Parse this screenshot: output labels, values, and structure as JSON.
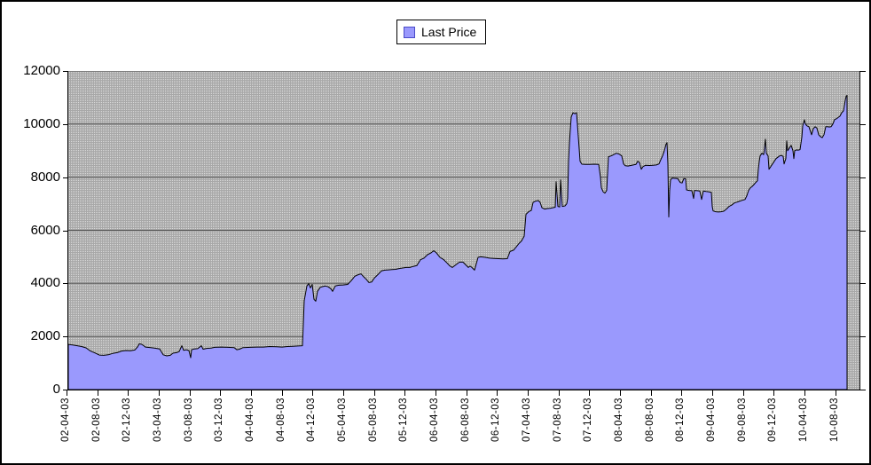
{
  "legend": {
    "label": "Last Price"
  },
  "colors": {
    "series_fill": "#9a99fd",
    "series_border": "#000000",
    "plot_bg_light": "#d8d8d8",
    "plot_bg_dot": "#a8a8a8",
    "gridline": "#555555",
    "legend_swatch_border": "#4a4ac8",
    "axis": "#000000"
  },
  "chart_data": {
    "type": "area",
    "title": "",
    "xlabel": "",
    "ylabel": "",
    "ylim": [
      0,
      12000
    ],
    "y_ticks": [
      0,
      2000,
      4000,
      6000,
      8000,
      10000,
      12000
    ],
    "grid": true,
    "legend_position": "top-center",
    "plot_background": "gray-dither",
    "x_tick_labels": [
      "02-04-03",
      "02-08-03",
      "02-12-03",
      "03-04-03",
      "03-08-03",
      "03-12-03",
      "04-04-03",
      "04-08-03",
      "04-12-03",
      "05-04-03",
      "05-08-03",
      "05-12-03",
      "06-04-03",
      "06-08-03",
      "06-12-03",
      "07-04-03",
      "07-08-03",
      "07-12-03",
      "08-04-03",
      "08-08-03",
      "08-12-03",
      "09-04-03",
      "09-08-03",
      "09-12-03",
      "10-04-03",
      "10-08-03"
    ],
    "x_unit": "weeks since 02-04-03",
    "weeks_per_x_tick": 17.33,
    "series": [
      {
        "name": "Last Price",
        "points": [
          [
            1,
            1700
          ],
          [
            3.5,
            1680
          ],
          [
            6,
            1650
          ],
          [
            8.5,
            1620
          ],
          [
            11,
            1570
          ],
          [
            13.5,
            1450
          ],
          [
            16,
            1380
          ],
          [
            18.5,
            1300
          ],
          [
            21,
            1290
          ],
          [
            23.5,
            1310
          ],
          [
            26,
            1360
          ],
          [
            28.5,
            1390
          ],
          [
            31,
            1450
          ],
          [
            33.5,
            1470
          ],
          [
            36,
            1460
          ],
          [
            38.5,
            1490
          ],
          [
            40,
            1600
          ],
          [
            41,
            1720
          ],
          [
            42.5,
            1700
          ],
          [
            44.5,
            1600
          ],
          [
            47.5,
            1580
          ],
          [
            49.5,
            1560
          ],
          [
            52.5,
            1530
          ],
          [
            54.5,
            1310
          ],
          [
            56.5,
            1270
          ],
          [
            58.5,
            1290
          ],
          [
            60,
            1370
          ],
          [
            62,
            1390
          ],
          [
            63.5,
            1430
          ],
          [
            65,
            1650
          ],
          [
            66,
            1480
          ],
          [
            67.5,
            1500
          ],
          [
            69,
            1470
          ],
          [
            70,
            1200
          ],
          [
            70.5,
            1500
          ],
          [
            72,
            1530
          ],
          [
            74,
            1540
          ],
          [
            76,
            1650
          ],
          [
            77,
            1520
          ],
          [
            79,
            1550
          ],
          [
            81.5,
            1560
          ],
          [
            83.5,
            1590
          ],
          [
            87.5,
            1600
          ],
          [
            91,
            1590
          ],
          [
            94.5,
            1580
          ],
          [
            96,
            1500
          ],
          [
            97.5,
            1520
          ],
          [
            99.5,
            1580
          ],
          [
            103.5,
            1590
          ],
          [
            107.5,
            1600
          ],
          [
            111,
            1600
          ],
          [
            114.5,
            1620
          ],
          [
            118.5,
            1610
          ],
          [
            121.5,
            1600
          ],
          [
            124.5,
            1620
          ],
          [
            127.5,
            1630
          ],
          [
            130.5,
            1640
          ],
          [
            133,
            1650
          ],
          [
            134,
            3350
          ],
          [
            135.5,
            3900
          ],
          [
            136.5,
            3990
          ],
          [
            137.5,
            3830
          ],
          [
            138.5,
            3960
          ],
          [
            139.5,
            3400
          ],
          [
            140.5,
            3330
          ],
          [
            141.5,
            3700
          ],
          [
            143,
            3850
          ],
          [
            144.5,
            3880
          ],
          [
            146,
            3900
          ],
          [
            147.5,
            3870
          ],
          [
            149,
            3800
          ],
          [
            150,
            3700
          ],
          [
            151.5,
            3900
          ],
          [
            153.5,
            3930
          ],
          [
            156,
            3940
          ],
          [
            158.5,
            3960
          ],
          [
            160.5,
            4100
          ],
          [
            162.5,
            4270
          ],
          [
            164.5,
            4330
          ],
          [
            166,
            4360
          ],
          [
            167.5,
            4250
          ],
          [
            169,
            4150
          ],
          [
            170.5,
            4030
          ],
          [
            172,
            4050
          ],
          [
            173.5,
            4200
          ],
          [
            175.5,
            4330
          ],
          [
            177.5,
            4470
          ],
          [
            179.5,
            4500
          ],
          [
            181.5,
            4510
          ],
          [
            183.5,
            4520
          ],
          [
            185.5,
            4530
          ],
          [
            187.5,
            4560
          ],
          [
            189.5,
            4580
          ],
          [
            191.5,
            4600
          ],
          [
            193.5,
            4600
          ],
          [
            195.5,
            4640
          ],
          [
            197.5,
            4670
          ],
          [
            199.5,
            4890
          ],
          [
            201.5,
            4950
          ],
          [
            203.5,
            5080
          ],
          [
            205.5,
            5150
          ],
          [
            207,
            5230
          ],
          [
            208.5,
            5150
          ],
          [
            210.5,
            4980
          ],
          [
            212.5,
            4900
          ],
          [
            214.5,
            4770
          ],
          [
            216,
            4660
          ],
          [
            217.5,
            4600
          ],
          [
            219.5,
            4700
          ],
          [
            221.5,
            4800
          ],
          [
            223.5,
            4800
          ],
          [
            225,
            4700
          ],
          [
            226.5,
            4600
          ],
          [
            227.5,
            4650
          ],
          [
            228.5,
            4600
          ],
          [
            230,
            4500
          ],
          [
            232,
            4980
          ],
          [
            233.5,
            5000
          ],
          [
            236,
            4980
          ],
          [
            238.5,
            4950
          ],
          [
            241,
            4940
          ],
          [
            243.5,
            4930
          ],
          [
            246,
            4920
          ],
          [
            248.5,
            4930
          ],
          [
            250,
            5200
          ],
          [
            252,
            5250
          ],
          [
            253.5,
            5370
          ],
          [
            255,
            5500
          ],
          [
            256.5,
            5600
          ],
          [
            258,
            5780
          ],
          [
            259,
            6600
          ],
          [
            260.5,
            6700
          ],
          [
            262,
            6750
          ],
          [
            263,
            7050
          ],
          [
            264.5,
            7100
          ],
          [
            266,
            7120
          ],
          [
            267,
            7050
          ],
          [
            268,
            6850
          ],
          [
            269.5,
            6800
          ],
          [
            271,
            6820
          ],
          [
            272.5,
            6830
          ],
          [
            274,
            6850
          ],
          [
            275.5,
            6870
          ],
          [
            276,
            7830
          ],
          [
            277,
            6900
          ],
          [
            278,
            6880
          ],
          [
            278.5,
            7900
          ],
          [
            279.5,
            6900
          ],
          [
            281,
            6920
          ],
          [
            282,
            7000
          ],
          [
            282.5,
            7200
          ],
          [
            283,
            8600
          ],
          [
            283.5,
            9300
          ],
          [
            284.5,
            10270
          ],
          [
            285.5,
            10430
          ],
          [
            286.5,
            10390
          ],
          [
            287.5,
            10430
          ],
          [
            288,
            10000
          ],
          [
            288.5,
            9530
          ],
          [
            289.5,
            8600
          ],
          [
            290.5,
            8490
          ],
          [
            292.5,
            8480
          ],
          [
            295,
            8480
          ],
          [
            297.5,
            8490
          ],
          [
            300,
            8480
          ],
          [
            301,
            8000
          ],
          [
            301.5,
            7600
          ],
          [
            302.5,
            7450
          ],
          [
            303.5,
            7400
          ],
          [
            304.5,
            7500
          ],
          [
            305.5,
            8770
          ],
          [
            307,
            8800
          ],
          [
            308.5,
            8850
          ],
          [
            310,
            8900
          ],
          [
            311.5,
            8870
          ],
          [
            313,
            8800
          ],
          [
            314,
            8500
          ],
          [
            315,
            8430
          ],
          [
            316.5,
            8420
          ],
          [
            318,
            8440
          ],
          [
            319.5,
            8460
          ],
          [
            321,
            8480
          ],
          [
            322,
            8600
          ],
          [
            323,
            8550
          ],
          [
            324,
            8300
          ],
          [
            325,
            8400
          ],
          [
            326.5,
            8450
          ],
          [
            328.5,
            8440
          ],
          [
            330.5,
            8450
          ],
          [
            332.5,
            8460
          ],
          [
            334,
            8500
          ],
          [
            335,
            8660
          ],
          [
            336,
            8800
          ],
          [
            337,
            9000
          ],
          [
            338,
            9250
          ],
          [
            338.5,
            9300
          ],
          [
            339,
            8500
          ],
          [
            339.5,
            6500
          ],
          [
            340,
            7500
          ],
          [
            340.5,
            7900
          ],
          [
            341.5,
            7970
          ],
          [
            342.5,
            7960
          ],
          [
            344.5,
            7950
          ],
          [
            346,
            7800
          ],
          [
            347,
            7780
          ],
          [
            348,
            7950
          ],
          [
            349,
            7940
          ],
          [
            349.5,
            7520
          ],
          [
            351,
            7500
          ],
          [
            352.5,
            7490
          ],
          [
            353.5,
            7200
          ],
          [
            354,
            7500
          ],
          [
            355.5,
            7490
          ],
          [
            357,
            7480
          ],
          [
            358,
            7160
          ],
          [
            359,
            7480
          ],
          [
            360.5,
            7460
          ],
          [
            362,
            7450
          ],
          [
            363.5,
            7430
          ],
          [
            364,
            6900
          ],
          [
            364.5,
            6730
          ],
          [
            366,
            6700
          ],
          [
            367.5,
            6690
          ],
          [
            369,
            6700
          ],
          [
            370.5,
            6720
          ],
          [
            372,
            6800
          ],
          [
            373.5,
            6900
          ],
          [
            375,
            6950
          ],
          [
            376.5,
            7030
          ],
          [
            378,
            7060
          ],
          [
            379.5,
            7100
          ],
          [
            381,
            7130
          ],
          [
            382.5,
            7160
          ],
          [
            383.5,
            7300
          ],
          [
            384.5,
            7500
          ],
          [
            385.5,
            7600
          ],
          [
            386.5,
            7650
          ],
          [
            387.5,
            7720
          ],
          [
            388.5,
            7800
          ],
          [
            389.5,
            7870
          ],
          [
            390,
            8300
          ],
          [
            390.5,
            8600
          ],
          [
            391,
            8800
          ],
          [
            392,
            8900
          ],
          [
            393,
            8850
          ],
          [
            394,
            9430
          ],
          [
            394.5,
            8900
          ],
          [
            395.5,
            8800
          ],
          [
            396,
            8300
          ],
          [
            397,
            8400
          ],
          [
            398,
            8500
          ],
          [
            399,
            8600
          ],
          [
            400,
            8700
          ],
          [
            401,
            8750
          ],
          [
            402,
            8800
          ],
          [
            403,
            8820
          ],
          [
            404,
            8780
          ],
          [
            404.5,
            8500
          ],
          [
            405.5,
            8700
          ],
          [
            406,
            9370
          ],
          [
            406.5,
            9000
          ],
          [
            407.5,
            9100
          ],
          [
            408.5,
            9200
          ],
          [
            409.5,
            9000
          ],
          [
            410,
            8700
          ],
          [
            410.5,
            9000
          ],
          [
            411.5,
            9030
          ],
          [
            412.5,
            9020
          ],
          [
            413.5,
            9040
          ],
          [
            414.5,
            9500
          ],
          [
            415,
            9930
          ],
          [
            416,
            10160
          ],
          [
            416.5,
            10000
          ],
          [
            417.5,
            9930
          ],
          [
            418.5,
            9900
          ],
          [
            419.5,
            9700
          ],
          [
            420,
            9600
          ],
          [
            421,
            9830
          ],
          [
            422,
            9900
          ],
          [
            423,
            9850
          ],
          [
            424,
            9600
          ],
          [
            425,
            9530
          ],
          [
            426,
            9490
          ],
          [
            427,
            9600
          ],
          [
            428,
            9900
          ],
          [
            429,
            9900
          ],
          [
            430,
            9890
          ],
          [
            431,
            9900
          ],
          [
            432,
            10000
          ],
          [
            433,
            10170
          ],
          [
            434,
            10200
          ],
          [
            435,
            10250
          ],
          [
            436,
            10300
          ],
          [
            437,
            10430
          ],
          [
            438,
            10500
          ],
          [
            438.5,
            10700
          ],
          [
            439,
            10900
          ],
          [
            439.5,
            11050
          ],
          [
            440,
            11080
          ]
        ]
      }
    ]
  }
}
